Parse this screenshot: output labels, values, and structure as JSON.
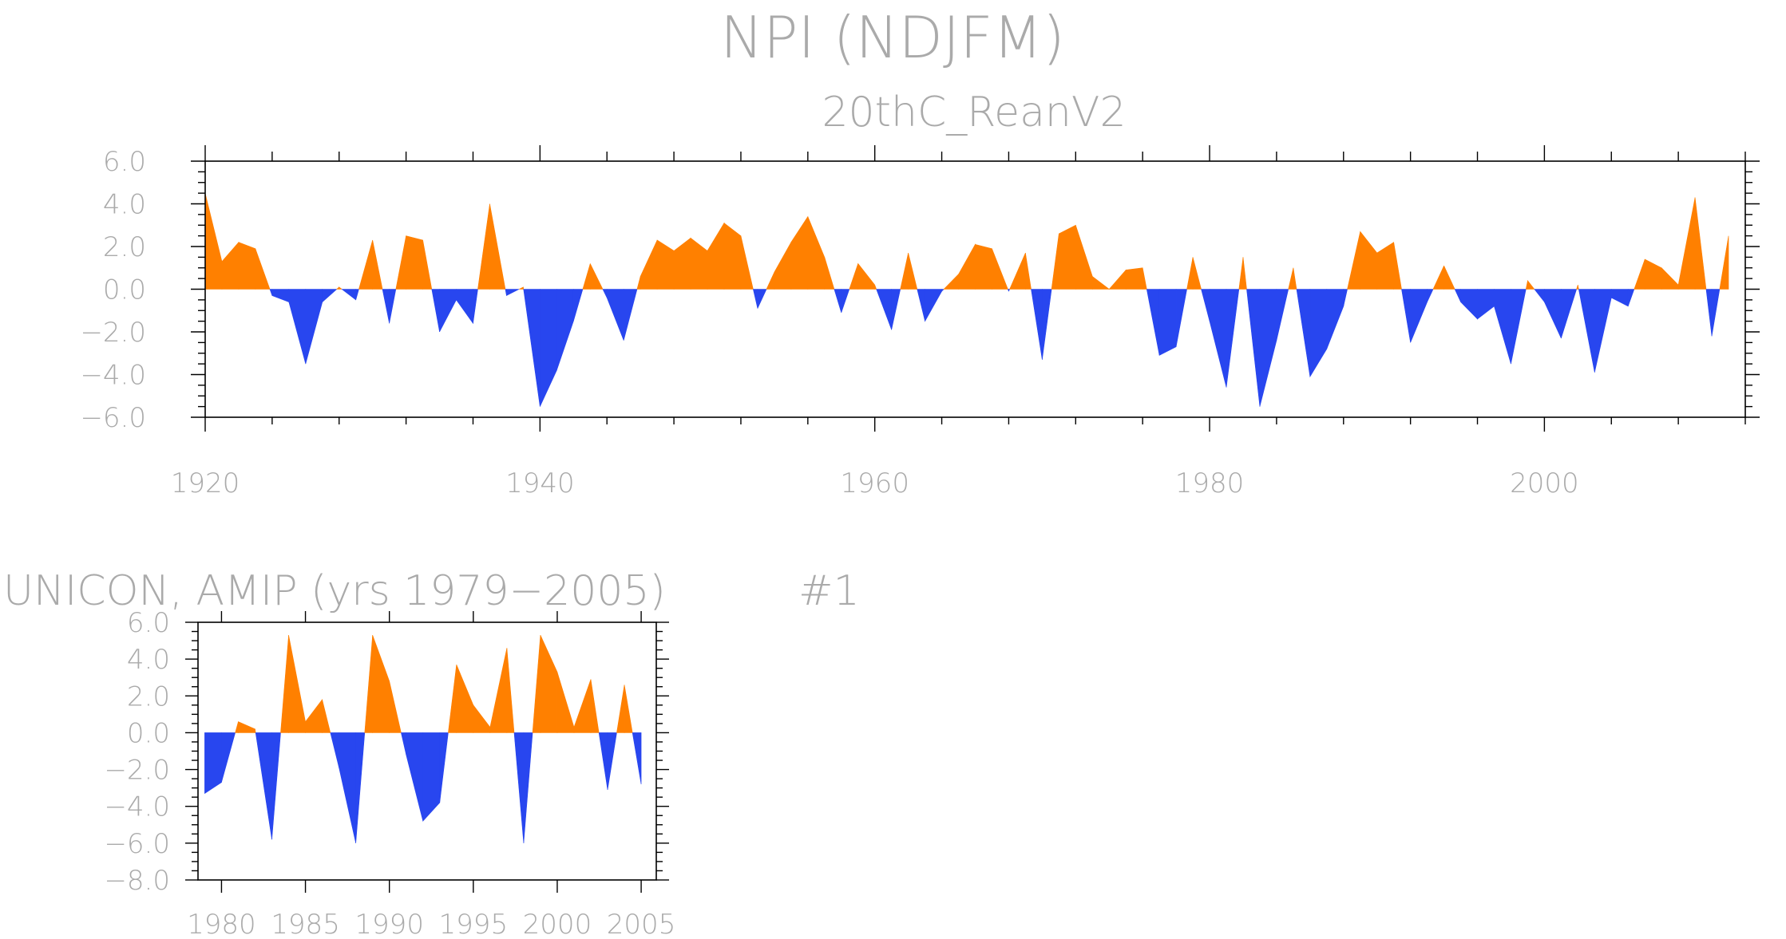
{
  "figure": {
    "title": "NPI (NDJFM)",
    "colors": {
      "positive": "#ff8000",
      "negative": "#2846ef",
      "text": "#aaaaaa",
      "axes": "#000000"
    }
  },
  "chart_data": [
    {
      "type": "area",
      "title": "20thC_ReanV2",
      "xlabel": "",
      "ylabel": "",
      "xlim": [
        1920,
        2012
      ],
      "ylim": [
        -6,
        6
      ],
      "x_ticks": [
        1920,
        1940,
        1960,
        1980,
        2000
      ],
      "y_ticks": [
        -6,
        -4,
        -2,
        0,
        2,
        4,
        6
      ],
      "y_tick_labels": [
        "−6.0",
        "−4.0",
        "−2.0",
        "0.0",
        "2.0",
        "4.0",
        "6.0"
      ],
      "grid": false,
      "series": [
        {
          "x": [
            1920,
            1921,
            1922,
            1923,
            1924,
            1925,
            1926,
            1927,
            1928,
            1929,
            1930,
            1931,
            1932,
            1933,
            1934,
            1935,
            1936,
            1937,
            1938,
            1939,
            1940,
            1941,
            1942,
            1943,
            1944,
            1945,
            1946,
            1947,
            1948,
            1949,
            1950,
            1951,
            1952,
            1953,
            1954,
            1955,
            1956,
            1957,
            1958,
            1959,
            1960,
            1961,
            1962,
            1963,
            1964,
            1965,
            1966,
            1967,
            1968,
            1969,
            1970,
            1971,
            1972,
            1973,
            1974,
            1975,
            1976,
            1977,
            1978,
            1979,
            1980,
            1981,
            1982,
            1983,
            1984,
            1985,
            1986,
            1987,
            1988,
            1989,
            1990,
            1991,
            1992,
            1993,
            1994,
            1995,
            1996,
            1997,
            1998,
            1999,
            2000,
            2001,
            2002,
            2003,
            2004,
            2005,
            2006,
            2007,
            2008,
            2009,
            2010,
            2011
          ],
          "values": [
            4.5,
            1.3,
            2.2,
            1.9,
            -0.3,
            -0.6,
            -3.5,
            -0.6,
            0.1,
            -0.5,
            2.3,
            -1.6,
            2.5,
            2.3,
            -2.0,
            -0.5,
            -1.6,
            4.0,
            -0.3,
            0.1,
            -5.5,
            -3.8,
            -1.5,
            1.2,
            -0.4,
            -2.4,
            0.6,
            2.3,
            1.8,
            2.4,
            1.8,
            3.1,
            2.5,
            -0.9,
            0.8,
            2.2,
            3.4,
            1.5,
            -1.1,
            1.2,
            0.2,
            -1.9,
            1.7,
            -1.5,
            -0.1,
            0.7,
            2.1,
            1.9,
            -0.1,
            1.7,
            -3.3,
            2.6,
            3.0,
            0.6,
            0.0,
            0.9,
            1.0,
            -3.1,
            -2.7,
            1.5,
            -1.5,
            -4.6,
            1.5,
            -5.5,
            -2.4,
            1.0,
            -4.1,
            -2.8,
            -0.8,
            2.7,
            1.7,
            2.2,
            -2.5,
            -0.6,
            1.1,
            -0.6,
            -1.4,
            -0.8,
            -3.5,
            0.4,
            -0.6,
            -2.3,
            0.2,
            -3.9,
            -0.4,
            -0.8,
            1.4,
            1.0,
            0.2,
            4.3,
            -2.2,
            2.5
          ]
        }
      ]
    },
    {
      "type": "area",
      "title": "UNICON, AMIP (yrs 1979−2005)",
      "annotation": "#1",
      "xlabel": "",
      "ylabel": "",
      "xlim": [
        1978.6,
        2005.9
      ],
      "ylim": [
        -8,
        6
      ],
      "x_ticks": [
        1980,
        1985,
        1990,
        1995,
        2000,
        2005
      ],
      "x_tick_labels": [
        "1980",
        "1985",
        "1990",
        "1995",
        "2000",
        "2005"
      ],
      "y_ticks": [
        -8,
        -6,
        -4,
        -2,
        0,
        2,
        4,
        6
      ],
      "y_tick_labels": [
        "−8.0",
        "−6.0",
        "−4.0",
        "−2.0",
        "0.0",
        "2.0",
        "4.0",
        "6.0"
      ],
      "grid": false,
      "series": [
        {
          "x": [
            1979,
            1980,
            1981,
            1982,
            1983,
            1984,
            1985,
            1986,
            1987,
            1988,
            1989,
            1990,
            1991,
            1992,
            1993,
            1994,
            1995,
            1996,
            1997,
            1998,
            1999,
            2000,
            2001,
            2002,
            2003,
            2004,
            2005
          ],
          "values": [
            -3.3,
            -2.7,
            0.6,
            0.2,
            -5.8,
            5.3,
            0.6,
            1.8,
            -1.9,
            -6.0,
            5.3,
            2.8,
            -1.2,
            -4.8,
            -3.8,
            3.7,
            1.5,
            0.3,
            4.6,
            -6.0,
            5.3,
            3.3,
            0.3,
            2.9,
            -3.1,
            2.6,
            -2.8
          ]
        }
      ]
    }
  ]
}
